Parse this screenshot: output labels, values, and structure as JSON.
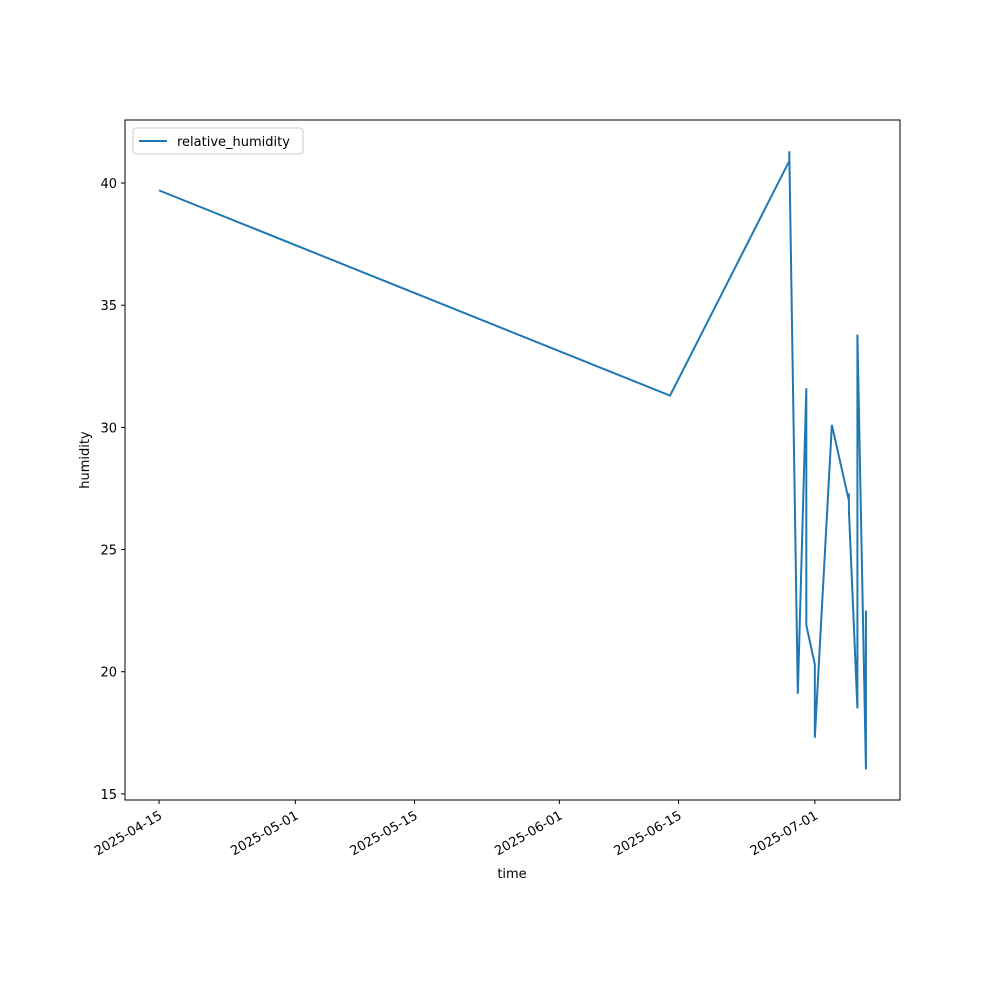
{
  "chart_data": {
    "type": "line",
    "xlabel": "time",
    "ylabel": "humidity",
    "x": [
      "2025-04-15",
      "2025-06-14",
      "2025-06-28",
      "2025-06-28",
      "2025-06-29",
      "2025-06-30",
      "2025-06-30",
      "2025-07-01",
      "2025-07-01",
      "2025-07-03",
      "2025-07-05",
      "2025-07-05",
      "2025-07-05",
      "2025-07-06",
      "2025-07-06",
      "2025-07-07",
      "2025-07-07"
    ],
    "series": [
      {
        "name": "relative_humidity",
        "color": "#1f77b4",
        "values": [
          39.7,
          31.3,
          40.9,
          41.3,
          19.1,
          31.6,
          21.9,
          20.3,
          17.3,
          30.1,
          27.0,
          27.3,
          26.6,
          18.5,
          33.8,
          16.0,
          22.5
        ]
      }
    ],
    "xlim": [
      "2025-04-11",
      "2025-07-11"
    ],
    "xticks": [
      "2025-04-15",
      "2025-05-01",
      "2025-05-15",
      "2025-06-01",
      "2025-06-15",
      "2025-07-01"
    ],
    "ylim": [
      14.75,
      42.58
    ],
    "yticks": [
      15,
      20,
      25,
      30,
      35,
      40
    ],
    "legend": "upper left",
    "grid": false
  }
}
